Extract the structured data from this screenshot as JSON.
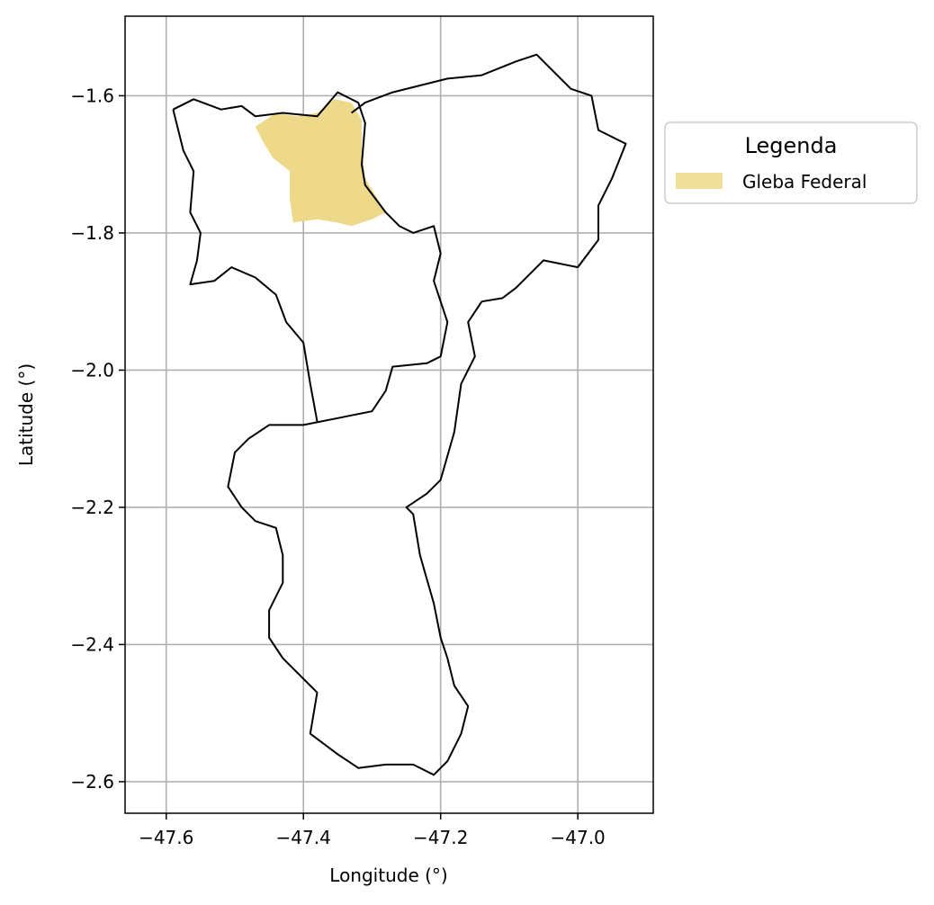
{
  "chart_data": {
    "type": "map",
    "xlabel": "Longitude (°)",
    "ylabel": "Latitude (°)",
    "xlim": [
      -47.66,
      -46.89
    ],
    "ylim": [
      -2.646,
      -1.484
    ],
    "xticks": [
      -47.6,
      -47.4,
      -47.2,
      -47.0
    ],
    "xtick_labels": [
      "−47.6",
      "−47.4",
      "−47.2",
      "−47.0"
    ],
    "yticks": [
      -1.6,
      -1.8,
      -2.0,
      -2.2,
      -2.4,
      -2.6
    ],
    "ytick_labels": [
      "−1.6",
      "−1.8",
      "−2.0",
      "−2.2",
      "−2.4",
      "−2.6"
    ],
    "grid": true,
    "legend": {
      "title": "Legenda",
      "placement": "right-outside-top",
      "entries": [
        {
          "label": "Gleba Federal",
          "color": "#F0DE9B"
        }
      ]
    },
    "layers": [
      {
        "name": "municipal boundaries",
        "kind": "outline",
        "color": "#000000",
        "polygons": [
          [
            [
              -47.59,
              -1.62
            ],
            [
              -47.56,
              -1.605
            ],
            [
              -47.52,
              -1.62
            ],
            [
              -47.49,
              -1.615
            ],
            [
              -47.47,
              -1.63
            ],
            [
              -47.43,
              -1.625
            ],
            [
              -47.38,
              -1.63
            ],
            [
              -47.35,
              -1.595
            ],
            [
              -47.32,
              -1.61
            ],
            [
              -47.31,
              -1.64
            ],
            [
              -47.315,
              -1.7
            ],
            [
              -47.31,
              -1.73
            ],
            [
              -47.28,
              -1.77
            ],
            [
              -47.26,
              -1.79
            ],
            [
              -47.24,
              -1.8
            ],
            [
              -47.21,
              -1.79
            ],
            [
              -47.2,
              -1.83
            ],
            [
              -47.21,
              -1.87
            ],
            [
              -47.19,
              -1.93
            ],
            [
              -47.2,
              -1.98
            ],
            [
              -47.22,
              -1.99
            ],
            [
              -47.27,
              -1.995
            ],
            [
              -47.28,
              -2.03
            ],
            [
              -47.3,
              -2.06
            ],
            [
              -47.35,
              -2.07
            ],
            [
              -47.4,
              -2.08
            ],
            [
              -47.45,
              -2.08
            ],
            [
              -47.48,
              -2.1
            ],
            [
              -47.5,
              -2.12
            ],
            [
              -47.51,
              -2.17
            ],
            [
              -47.49,
              -2.2
            ],
            [
              -47.47,
              -2.22
            ],
            [
              -47.44,
              -2.23
            ],
            [
              -47.43,
              -2.27
            ],
            [
              -47.43,
              -2.31
            ],
            [
              -47.45,
              -2.35
            ],
            [
              -47.45,
              -2.39
            ],
            [
              -47.43,
              -2.42
            ],
            [
              -47.4,
              -2.45
            ],
            [
              -47.38,
              -2.47
            ],
            [
              -47.39,
              -2.53
            ],
            [
              -47.35,
              -2.56
            ],
            [
              -47.32,
              -2.58
            ],
            [
              -47.28,
              -2.575
            ],
            [
              -47.24,
              -2.575
            ],
            [
              -47.21,
              -2.59
            ],
            [
              -47.19,
              -2.57
            ],
            [
              -47.17,
              -2.53
            ],
            [
              -47.16,
              -2.49
            ],
            [
              -47.18,
              -2.46
            ],
            [
              -47.19,
              -2.42
            ],
            [
              -47.2,
              -2.39
            ],
            [
              -47.21,
              -2.34
            ],
            [
              -47.23,
              -2.27
            ],
            [
              -47.24,
              -2.21
            ],
            [
              -47.25,
              -2.2
            ],
            [
              -47.22,
              -2.18
            ],
            [
              -47.2,
              -2.16
            ],
            [
              -47.18,
              -2.09
            ],
            [
              -47.17,
              -2.02
            ],
            [
              -47.15,
              -1.98
            ],
            [
              -47.16,
              -1.93
            ],
            [
              -47.14,
              -1.9
            ],
            [
              -47.11,
              -1.895
            ],
            [
              -47.09,
              -1.88
            ],
            [
              -47.05,
              -1.84
            ],
            [
              -47.0,
              -1.85
            ],
            [
              -46.97,
              -1.81
            ],
            [
              -46.97,
              -1.76
            ],
            [
              -46.95,
              -1.72
            ],
            [
              -46.93,
              -1.67
            ],
            [
              -46.97,
              -1.65
            ],
            [
              -46.98,
              -1.6
            ],
            [
              -47.01,
              -1.59
            ],
            [
              -47.04,
              -1.56
            ],
            [
              -47.06,
              -1.54
            ],
            [
              -47.09,
              -1.55
            ],
            [
              -47.14,
              -1.57
            ],
            [
              -47.19,
              -1.575
            ],
            [
              -47.23,
              -1.585
            ],
            [
              -47.27,
              -1.595
            ],
            [
              -47.31,
              -1.61
            ],
            [
              -47.33,
              -1.625
            ]
          ],
          [
            [
              -47.59,
              -1.62
            ],
            [
              -47.575,
              -1.68
            ],
            [
              -47.56,
              -1.71
            ],
            [
              -47.565,
              -1.77
            ],
            [
              -47.55,
              -1.8
            ],
            [
              -47.555,
              -1.84
            ],
            [
              -47.565,
              -1.875
            ],
            [
              -47.53,
              -1.87
            ],
            [
              -47.505,
              -1.85
            ],
            [
              -47.47,
              -1.865
            ],
            [
              -47.44,
              -1.89
            ],
            [
              -47.425,
              -1.93
            ],
            [
              -47.4,
              -1.96
            ],
            [
              -47.39,
              -2.02
            ],
            [
              -47.38,
              -2.075
            ]
          ]
        ]
      },
      {
        "name": "Gleba Federal",
        "kind": "fill",
        "color": "#EED98A",
        "polygons": [
          [
            [
              -47.47,
              -1.645
            ],
            [
              -47.44,
              -1.625
            ],
            [
              -47.41,
              -1.63
            ],
            [
              -47.38,
              -1.625
            ],
            [
              -47.355,
              -1.605
            ],
            [
              -47.33,
              -1.61
            ],
            [
              -47.315,
              -1.635
            ],
            [
              -47.315,
              -1.68
            ],
            [
              -47.31,
              -1.72
            ],
            [
              -47.295,
              -1.745
            ],
            [
              -47.28,
              -1.77
            ],
            [
              -47.3,
              -1.78
            ],
            [
              -47.33,
              -1.79
            ],
            [
              -47.35,
              -1.785
            ],
            [
              -47.38,
              -1.78
            ],
            [
              -47.415,
              -1.785
            ],
            [
              -47.42,
              -1.75
            ],
            [
              -47.42,
              -1.71
            ],
            [
              -47.445,
              -1.69
            ],
            [
              -47.46,
              -1.665
            ]
          ]
        ]
      }
    ]
  }
}
